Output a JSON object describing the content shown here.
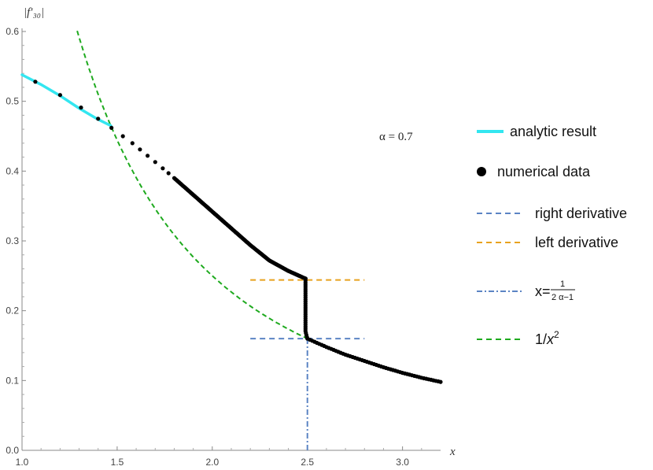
{
  "chart_data": {
    "type": "line",
    "ylabel": "|f′₃₀|",
    "xlabel": "x",
    "annotation": "α = 0.7",
    "xlim": [
      1.0,
      3.2
    ],
    "ylim": [
      0.0,
      0.6
    ],
    "x_ticks": [
      "1.0",
      "1.5",
      "2.0",
      "2.5",
      "3.0"
    ],
    "y_ticks": [
      "0.0",
      "0.1",
      "0.2",
      "0.3",
      "0.4",
      "0.5",
      "0.6"
    ],
    "grid": false,
    "legend_position": "right",
    "colors": {
      "analytic": "#33e6f0",
      "numerical": "#000000",
      "right_derivative": "#5b84c4",
      "left_derivative": "#e8a21e",
      "vertical_line": "#5b84c4",
      "inverse_square": "#1faa1f"
    },
    "series": [
      {
        "name": "analytic result",
        "style": "solid",
        "x": [
          1.0,
          1.1,
          1.2,
          1.3,
          1.4,
          1.467
        ],
        "y": [
          0.538,
          0.524,
          0.508,
          0.49,
          0.474,
          0.465
        ]
      },
      {
        "name": "numerical data",
        "style": "points",
        "segments": [
          {
            "x": [
              1.07,
              1.2,
              1.31,
              1.4,
              1.47,
              1.53,
              1.58,
              1.62,
              1.66,
              1.7,
              1.74,
              1.77,
              1.8,
              1.85,
              1.9,
              1.95,
              2.0,
              2.1,
              2.2,
              2.3,
              2.4,
              2.49
            ],
            "y": [
              0.528,
              0.509,
              0.491,
              0.475,
              0.462,
              0.45,
              0.44,
              0.431,
              0.422,
              0.413,
              0.404,
              0.397,
              0.39,
              0.378,
              0.366,
              0.354,
              0.342,
              0.318,
              0.294,
              0.272,
              0.257,
              0.246
            ]
          },
          {
            "x": [
              2.49,
              2.49,
              2.49,
              2.49,
              2.49,
              2.5
            ],
            "y": [
              0.246,
              0.23,
              0.21,
              0.19,
              0.17,
              0.16
            ]
          },
          {
            "x": [
              2.5,
              2.55,
              2.6,
              2.7,
              2.8,
              2.9,
              3.0,
              3.1,
              3.2
            ],
            "y": [
              0.16,
              0.154,
              0.148,
              0.137,
              0.128,
              0.119,
              0.111,
              0.104,
              0.098
            ]
          }
        ]
      },
      {
        "name": "right derivative",
        "style": "dashed",
        "x": [
          2.2,
          2.8
        ],
        "y": [
          0.16,
          0.16
        ]
      },
      {
        "name": "left derivative",
        "style": "dashed",
        "x": [
          2.2,
          2.8
        ],
        "y": [
          0.244,
          0.244
        ]
      },
      {
        "name": "x = 1/(2α−1)",
        "style": "dashdot",
        "x": [
          2.5,
          2.5
        ],
        "y": [
          0.0,
          0.16
        ]
      },
      {
        "name": "1/x²",
        "style": "dashed",
        "function": "1/x^2",
        "x": [
          1.29,
          2.5
        ]
      }
    ]
  },
  "legend": {
    "analytic": "analytic result",
    "numerical": "numerical data",
    "right": "right derivative",
    "left": "left derivative",
    "vline_prefix": "x=",
    "vline_num": "1",
    "vline_den": "2 α−1",
    "inverse_base": "1/",
    "inverse_var": "x",
    "inverse_exp": "2"
  }
}
